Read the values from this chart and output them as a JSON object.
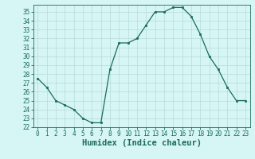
{
  "x": [
    0,
    1,
    2,
    3,
    4,
    5,
    6,
    7,
    8,
    9,
    10,
    11,
    12,
    13,
    14,
    15,
    16,
    17,
    18,
    19,
    20,
    21,
    22,
    23
  ],
  "y": [
    27.5,
    26.5,
    25.0,
    24.5,
    24.0,
    23.0,
    22.5,
    22.5,
    28.5,
    31.5,
    31.5,
    32.0,
    33.5,
    35.0,
    35.0,
    35.5,
    35.5,
    34.5,
    32.5,
    30.0,
    28.5,
    26.5,
    25.0,
    25.0
  ],
  "line_color": "#1a6b5a",
  "marker": "s",
  "marker_size": 2.0,
  "background_color": "#d6f5f5",
  "grid_color": "#b8dada",
  "xlabel": "Humidex (Indice chaleur)",
  "xlim": [
    -0.5,
    23.5
  ],
  "ylim": [
    22,
    35.8
  ],
  "yticks": [
    22,
    23,
    24,
    25,
    26,
    27,
    28,
    29,
    30,
    31,
    32,
    33,
    34,
    35
  ],
  "xticks": [
    0,
    1,
    2,
    3,
    4,
    5,
    6,
    7,
    8,
    9,
    10,
    11,
    12,
    13,
    14,
    15,
    16,
    17,
    18,
    19,
    20,
    21,
    22,
    23
  ],
  "tick_label_fontsize": 5.5,
  "xlabel_fontsize": 7.5,
  "axis_color": "#1a6b5a",
  "linewidth": 0.9
}
